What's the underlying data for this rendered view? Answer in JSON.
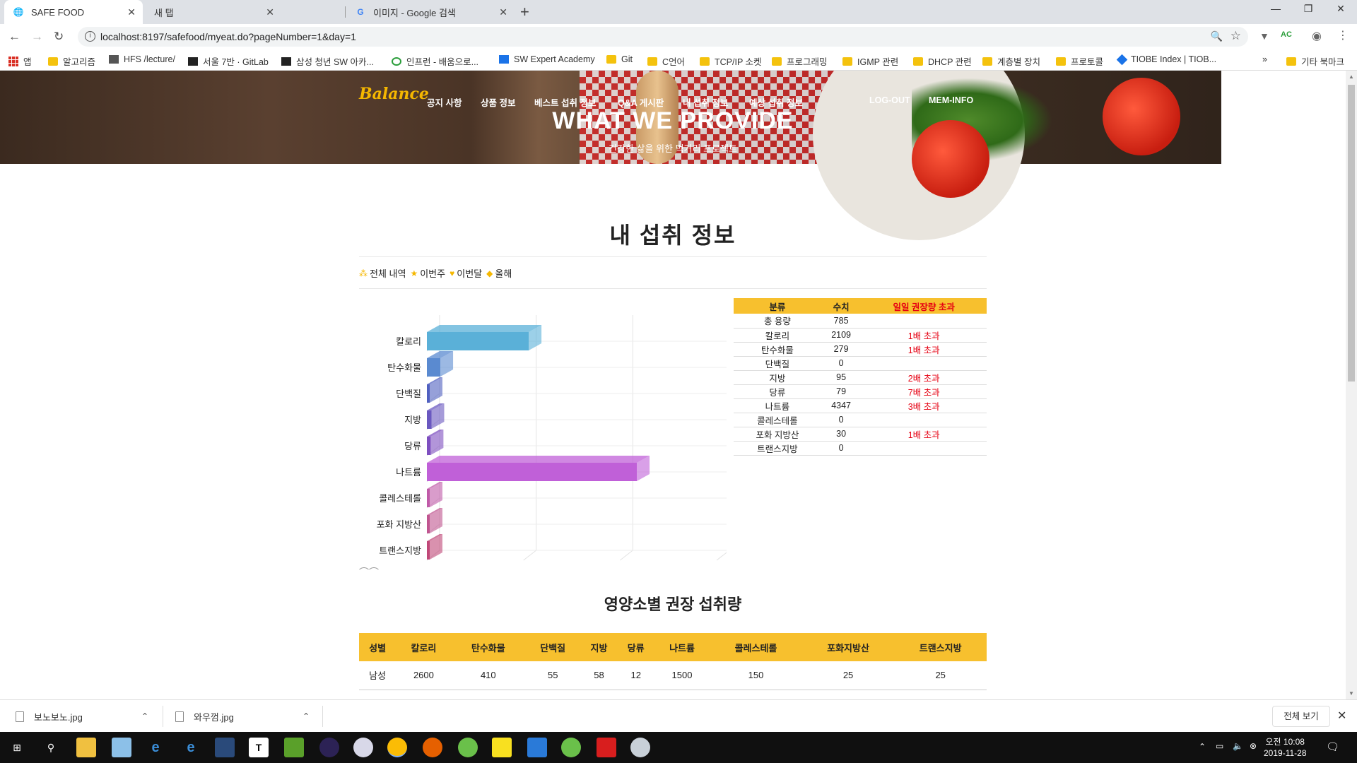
{
  "browser": {
    "tabs": [
      {
        "label": "SAFE FOOD",
        "icon": "globe-icon",
        "active": true
      },
      {
        "label": "새 탭",
        "icon": "",
        "active": false
      },
      {
        "label": "이미지 - Google 검색",
        "icon": "google-icon",
        "active": false
      }
    ],
    "url": "localhost:8197/safefood/myeat.do?pageNumber=1&day=1",
    "bookmarks": [
      "앱",
      "알고리즘",
      "HFS /lecture/",
      "서울 7반 · GitLab",
      "삼성 청년 SW 아카...",
      "인프런 - 배움으로...",
      "SW Expert Academy",
      "Git",
      "C언어",
      "TCP/IP 소켓",
      "프로그래밍",
      "IGMP 관련",
      "DHCP 관련",
      "계층별 장치",
      "프로토콜",
      "TIOBE Index | TIOB...",
      "»",
      "기타 북마크"
    ]
  },
  "hero": {
    "brand": "Balance",
    "nav": [
      "공지 사항",
      "상품 정보",
      "베스트 섭취 정보",
      "Q&A 게시판",
      "내 섭취 정보",
      "예상 섭취 정보"
    ],
    "auth": [
      "LOG-OUT",
      "MEM-INFO"
    ],
    "title": "WHAT WE PROVIDE",
    "subtitle": "건강한 삶을 위한 먹거리 프로젝트"
  },
  "page": {
    "title": "내 섭취 정보",
    "filters": [
      "전체 내역",
      "이번주",
      "이번달",
      "올해"
    ]
  },
  "chart_data": {
    "type": "bar",
    "orientation": "horizontal",
    "categories": [
      "칼로리",
      "탄수화물",
      "단백질",
      "지방",
      "당류",
      "나트륨",
      "콜레스테롤",
      "포화 지방산",
      "트랜스지방"
    ],
    "values": [
      2109,
      279,
      0,
      95,
      79,
      4347,
      0,
      30,
      0
    ],
    "xlim": [
      0,
      6000
    ],
    "xticks": [
      "0",
      "2000",
      "4000",
      "6000"
    ],
    "colors": [
      "#5ab0d8",
      "#5a8ad0",
      "#5060c0",
      "#6a58c0",
      "#7e4fc0",
      "#c060d8",
      "#c05aa8",
      "#c05590",
      "#c04878"
    ],
    "grid": true,
    "three_d": true
  },
  "intake_table": {
    "headers": [
      "분류",
      "수치",
      "일일 권장량 초과"
    ],
    "rows": [
      [
        "총 용량",
        "785",
        ""
      ],
      [
        "칼로리",
        "2109",
        "1배 초과"
      ],
      [
        "탄수화물",
        "279",
        "1배 초과"
      ],
      [
        "단백질",
        "0",
        ""
      ],
      [
        "지방",
        "95",
        "2배 초과"
      ],
      [
        "당류",
        "79",
        "7배 초과"
      ],
      [
        "나트륨",
        "4347",
        "3배 초과"
      ],
      [
        "콜레스테롤",
        "0",
        ""
      ],
      [
        "포화 지방산",
        "30",
        "1배 초과"
      ],
      [
        "트랜스지방",
        "0",
        ""
      ]
    ]
  },
  "recommendation": {
    "title": "영양소별 권장 섭취량",
    "headers": [
      "성별",
      "칼로리",
      "탄수화물",
      "단백질",
      "지방",
      "당류",
      "나트륨",
      "콜레스테롤",
      "포화지방산",
      "트랜스지방"
    ],
    "rows": [
      [
        "남성",
        "2600",
        "410",
        "55",
        "58",
        "12",
        "1500",
        "150",
        "25",
        "25"
      ]
    ]
  },
  "downloads": {
    "items": [
      "보노보노.jpg",
      "와우껌.jpg"
    ],
    "show_all": "전체 보기"
  },
  "taskbar": {
    "time": "오전 10:08",
    "date": "2019-11-28"
  }
}
